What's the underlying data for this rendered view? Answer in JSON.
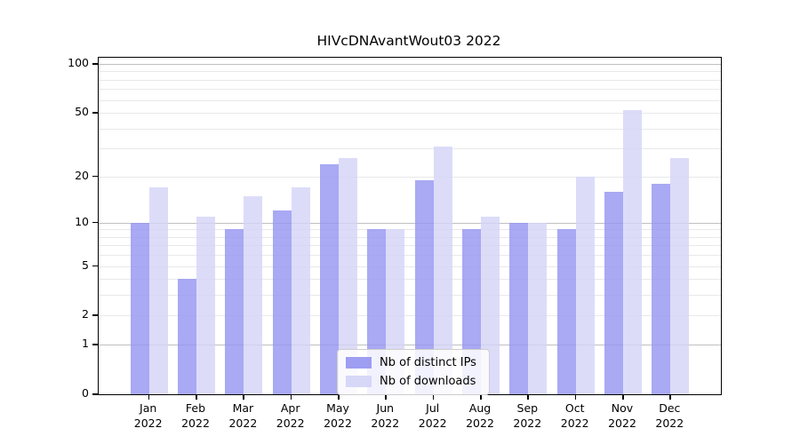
{
  "title": "HIVcDNAvantWout03 2022",
  "chart_data": {
    "type": "bar",
    "categories": [
      "Jan",
      "Feb",
      "Mar",
      "Apr",
      "May",
      "Jun",
      "Jul",
      "Aug",
      "Sep",
      "Oct",
      "Nov",
      "Dec"
    ],
    "year": "2022",
    "series": [
      {
        "name": "Nb of distinct IPs",
        "color": "#9393f1",
        "values": [
          10,
          4,
          9,
          12,
          24,
          9,
          19,
          9,
          10,
          9,
          16,
          18
        ]
      },
      {
        "name": "Nb of downloads",
        "color": "#d3d3f7",
        "values": [
          17,
          11,
          15,
          17,
          26,
          9,
          31,
          11,
          10,
          20,
          52,
          26
        ]
      }
    ],
    "yscale": "log1p",
    "y_ticks": [
      0,
      1,
      2,
      5,
      10,
      20,
      50,
      100
    ],
    "ylim": [
      0,
      110
    ],
    "grid": "horizontal",
    "legend_position": "lower-center-inside"
  }
}
